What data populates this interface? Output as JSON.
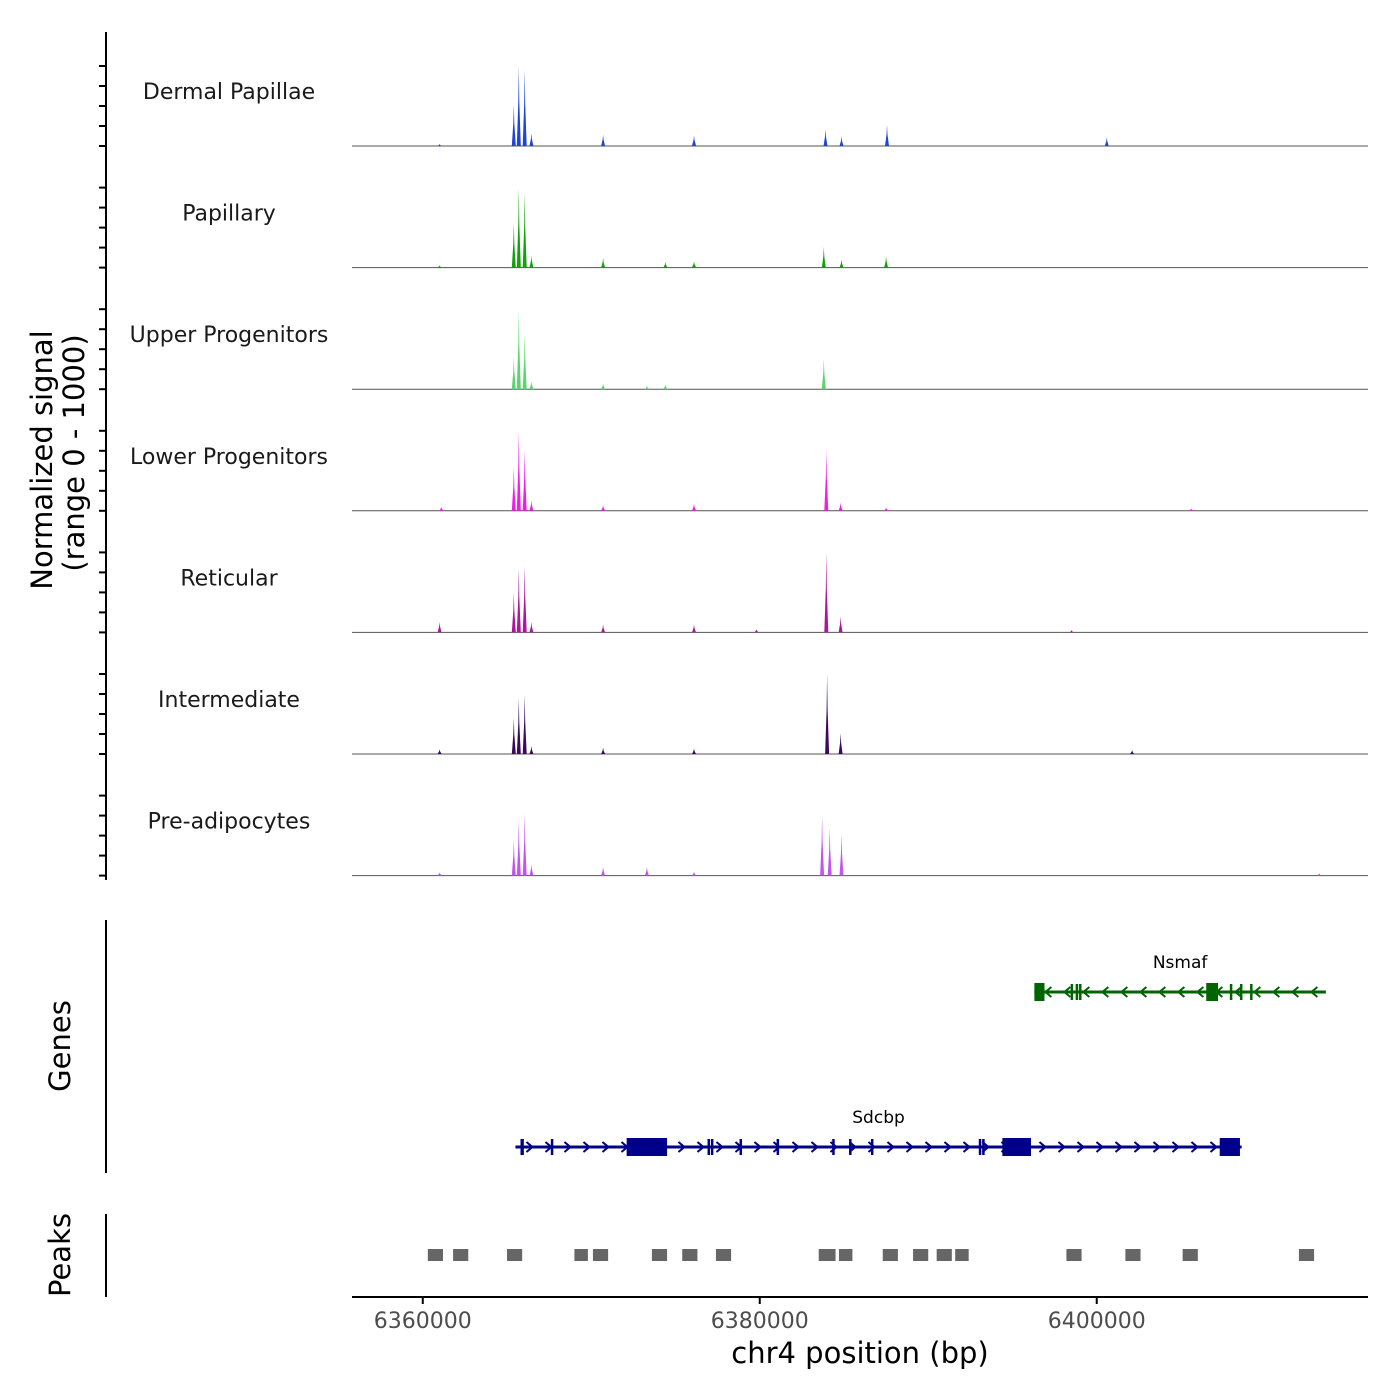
{
  "chart_data": {
    "type": "area",
    "title": "",
    "ylabel_line1": "Normalized signal",
    "ylabel_line2": "(range 0 - 1000)",
    "xlabel": "chr4 position (bp)",
    "xlim": [
      6355800,
      6416100
    ],
    "x_ticks": [
      6360000,
      6380000,
      6400000
    ],
    "x_tick_labels": [
      "6360000",
      "6380000",
      "6400000"
    ],
    "track_ylim": [
      0,
      1000
    ],
    "tracks": [
      {
        "name": "Dermal Papillae",
        "color": "#1f44d6",
        "peaks": [
          [
            6365700,
            1000,
            150
          ],
          [
            6366050,
            960,
            140
          ],
          [
            6365400,
            520,
            160
          ],
          [
            6366450,
            160,
            120
          ],
          [
            6370700,
            140,
            160
          ],
          [
            6376100,
            130,
            250
          ],
          [
            6383900,
            210,
            200
          ],
          [
            6384850,
            120,
            150
          ],
          [
            6387550,
            260,
            150
          ],
          [
            6400600,
            110,
            220
          ],
          [
            6361000,
            25,
            150
          ]
        ]
      },
      {
        "name": "Papillary",
        "color": "#15a10f",
        "peaks": [
          [
            6365700,
            1000,
            150
          ],
          [
            6366050,
            940,
            140
          ],
          [
            6365400,
            560,
            160
          ],
          [
            6366450,
            150,
            120
          ],
          [
            6370700,
            120,
            160
          ],
          [
            6376100,
            80,
            250
          ],
          [
            6383800,
            260,
            220
          ],
          [
            6384850,
            100,
            150
          ],
          [
            6387500,
            140,
            150
          ],
          [
            6374400,
            70,
            150
          ],
          [
            6361000,
            30,
            150
          ]
        ]
      },
      {
        "name": "Upper Progenitors",
        "color": "#5ad46c",
        "peaks": [
          [
            6365700,
            1000,
            150
          ],
          [
            6366050,
            700,
            140
          ],
          [
            6365400,
            400,
            160
          ],
          [
            6366450,
            100,
            120
          ],
          [
            6370700,
            70,
            160
          ],
          [
            6383800,
            380,
            220
          ],
          [
            6374400,
            60,
            150
          ],
          [
            6373300,
            40,
            150
          ]
        ]
      },
      {
        "name": "Lower Progenitors",
        "color": "#ee1ee8",
        "peaks": [
          [
            6365700,
            1000,
            150
          ],
          [
            6366050,
            760,
            140
          ],
          [
            6365400,
            550,
            160
          ],
          [
            6366450,
            130,
            120
          ],
          [
            6370700,
            70,
            160
          ],
          [
            6376100,
            90,
            200
          ],
          [
            6383950,
            760,
            220
          ],
          [
            6384800,
            100,
            150
          ],
          [
            6361100,
            50,
            150
          ],
          [
            6387500,
            40,
            150
          ],
          [
            6405600,
            30,
            150
          ]
        ]
      },
      {
        "name": "Reticular",
        "color": "#ae149c",
        "peaks": [
          [
            6365700,
            800,
            150
          ],
          [
            6366050,
            830,
            140
          ],
          [
            6365400,
            500,
            160
          ],
          [
            6366450,
            130,
            120
          ],
          [
            6370700,
            100,
            160
          ],
          [
            6376100,
            100,
            200
          ],
          [
            6383950,
            1000,
            220
          ],
          [
            6384800,
            200,
            150
          ],
          [
            6361000,
            130,
            150
          ],
          [
            6379800,
            40,
            150
          ],
          [
            6398500,
            30,
            200
          ]
        ]
      },
      {
        "name": "Intermediate",
        "color": "#3a0a5e",
        "peaks": [
          [
            6365700,
            700,
            150
          ],
          [
            6366050,
            740,
            140
          ],
          [
            6365400,
            450,
            160
          ],
          [
            6366450,
            100,
            120
          ],
          [
            6370700,
            80,
            160
          ],
          [
            6376100,
            70,
            200
          ],
          [
            6384000,
            1000,
            220
          ],
          [
            6384800,
            260,
            150
          ],
          [
            6361000,
            60,
            150
          ],
          [
            6402100,
            50,
            150
          ]
        ]
      },
      {
        "name": "Pre-adipocytes",
        "color": "#c155f0",
        "peaks": [
          [
            6365700,
            700,
            150
          ],
          [
            6366050,
            780,
            140
          ],
          [
            6365400,
            450,
            160
          ],
          [
            6366450,
            140,
            120
          ],
          [
            6370700,
            110,
            160
          ],
          [
            6373300,
            110,
            150
          ],
          [
            6383700,
            760,
            200
          ],
          [
            6384150,
            600,
            150
          ],
          [
            6384850,
            520,
            150
          ],
          [
            6376100,
            50,
            200
          ],
          [
            6361000,
            40,
            150
          ],
          [
            6413200,
            30,
            150
          ]
        ]
      }
    ],
    "genes_label": "Genes",
    "genes": [
      {
        "name": "Nsmaf",
        "strand": "-",
        "color": "#006400",
        "start": 6396300,
        "end": 6413600,
        "exons": [
          [
            6396300,
            6396900
          ],
          [
            6398450,
            6398600
          ],
          [
            6398750,
            6398850
          ],
          [
            6398950,
            6399050
          ],
          [
            6406500,
            6407200
          ],
          [
            6407900,
            6408000
          ],
          [
            6408500,
            6408600
          ],
          [
            6409100,
            6409200
          ]
        ]
      },
      {
        "name": "Sdcbp",
        "strand": "+",
        "color": "#00008b",
        "start": 6365500,
        "end": 6408600,
        "exons": [
          [
            6365800,
            6366000
          ],
          [
            6367600,
            6367700
          ],
          [
            6372100,
            6374500
          ],
          [
            6376900,
            6377000
          ],
          [
            6377100,
            6377200
          ],
          [
            6378800,
            6378900
          ],
          [
            6381000,
            6381100
          ],
          [
            6384300,
            6384400
          ],
          [
            6385300,
            6385400
          ],
          [
            6386600,
            6386700
          ],
          [
            6393000,
            6393100
          ],
          [
            6393200,
            6393300
          ],
          [
            6394400,
            6396100
          ],
          [
            6407300,
            6408500
          ]
        ]
      }
    ],
    "peaks_label": "Peaks",
    "peak_color": "#666666",
    "peak_regions": [
      [
        6360300,
        6361200
      ],
      [
        6361800,
        6362700
      ],
      [
        6365000,
        6365900
      ],
      [
        6369000,
        6369800
      ],
      [
        6370100,
        6371000
      ],
      [
        6373600,
        6374500
      ],
      [
        6375400,
        6376300
      ],
      [
        6377400,
        6378300
      ],
      [
        6383500,
        6384500
      ],
      [
        6384700,
        6385500
      ],
      [
        6387300,
        6388200
      ],
      [
        6389100,
        6390000
      ],
      [
        6390500,
        6391400
      ],
      [
        6391600,
        6392400
      ],
      [
        6398200,
        6399100
      ],
      [
        6401700,
        6402600
      ],
      [
        6405100,
        6406000
      ],
      [
        6412000,
        6412900
      ]
    ]
  }
}
